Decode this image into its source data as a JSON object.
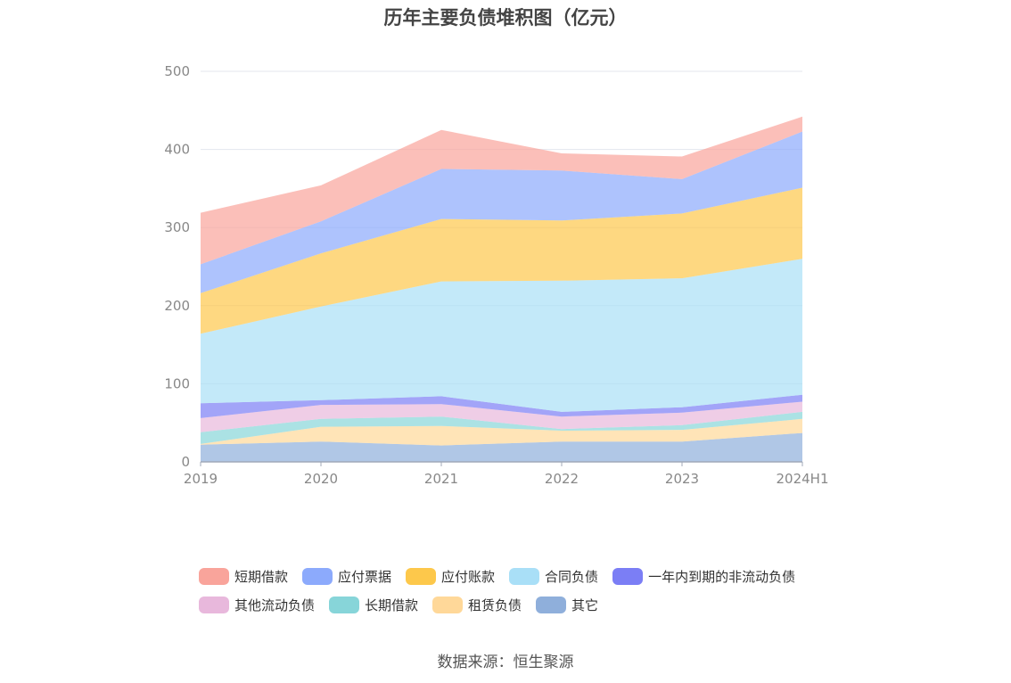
{
  "chart_data": {
    "type": "area",
    "stacked": true,
    "title": "历年主要负债堆积图（亿元）",
    "categories": [
      "2019",
      "2020",
      "2021",
      "2022",
      "2023",
      "2024H1"
    ],
    "ylim": [
      0,
      500
    ],
    "yticks": [
      "0",
      "100",
      "200",
      "300",
      "400",
      "500"
    ],
    "grid": true,
    "legend_position": "bottom",
    "series": [
      {
        "name": "其它",
        "color": "#8fafdb",
        "values": [
          22,
          26,
          21,
          26,
          26,
          37
        ]
      },
      {
        "name": "租赁负债",
        "color": "#ffd899",
        "values": [
          1,
          19,
          25,
          14,
          15,
          18
        ]
      },
      {
        "name": "长期借款",
        "color": "#87d5d9",
        "values": [
          15,
          10,
          12,
          2,
          6,
          9
        ]
      },
      {
        "name": "其他流动负债",
        "color": "#e8b8dc",
        "values": [
          18,
          18,
          16,
          16,
          16,
          13
        ]
      },
      {
        "name": "一年内到期的非流动负债",
        "color": "#7b7ef5",
        "values": [
          19,
          6,
          10,
          6,
          7,
          9
        ]
      },
      {
        "name": "合同负债",
        "color": "#a9dff7",
        "values": [
          89,
          120,
          147,
          168,
          165,
          174
        ]
      },
      {
        "name": "应付账款",
        "color": "#fdc84b",
        "values": [
          52,
          68,
          80,
          77,
          83,
          91
        ]
      },
      {
        "name": "应付票据",
        "color": "#8caafc",
        "values": [
          37,
          41,
          64,
          64,
          44,
          72
        ]
      },
      {
        "name": "短期借款",
        "color": "#f9a49b",
        "values": [
          66,
          46,
          50,
          22,
          29,
          19
        ]
      }
    ]
  },
  "legend_rows": [
    [
      "短期借款",
      "应付票据",
      "应付账款",
      "合同负债",
      "一年内到期的非流动负债"
    ],
    [
      "其他流动负债",
      "长期借款",
      "租赁负债",
      "其它"
    ]
  ],
  "source": "数据来源：恒生聚源"
}
